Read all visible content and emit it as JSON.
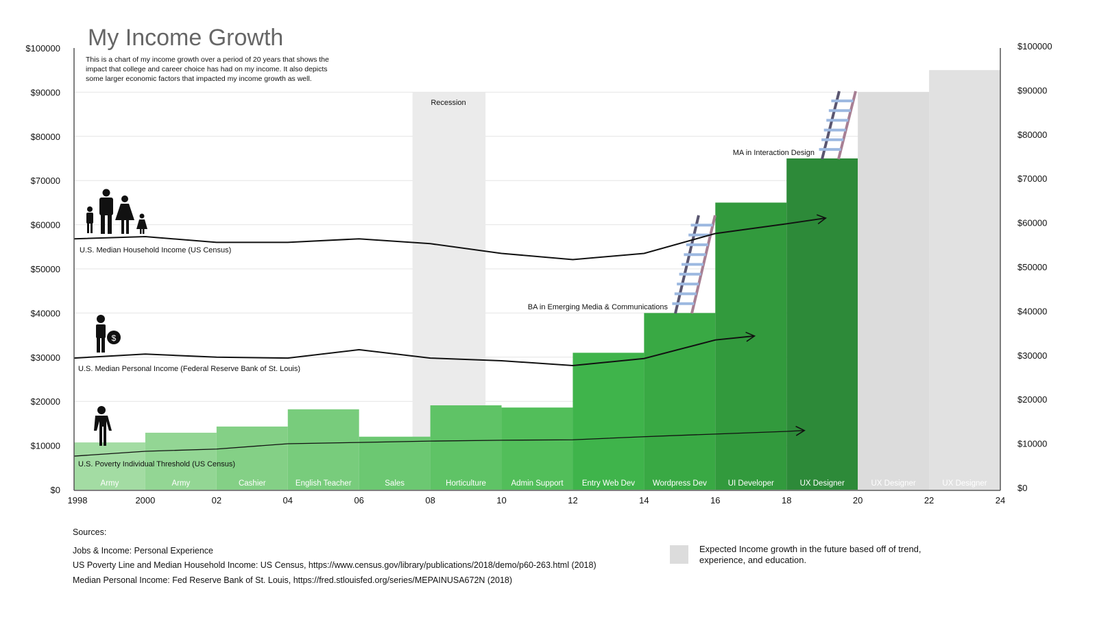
{
  "chart_data": {
    "type": "bar",
    "title": "My Income Growth",
    "subtitle": [
      "This is a chart of my income growth over a period of 20 years that shows the",
      "impact that college and career choice has had on my income. It also depicts",
      "some larger economic factors that impacted my income growth as well."
    ],
    "xlim": [
      1998,
      2024
    ],
    "ylim": [
      0,
      100000
    ],
    "grid": true,
    "x_tick_values": [
      1998,
      2000,
      2002,
      2004,
      2006,
      2008,
      2010,
      2012,
      2014,
      2016,
      2018,
      2020,
      2022,
      2024
    ],
    "x_tick_labels": [
      "1998",
      "2000",
      "02",
      "04",
      "06",
      "08",
      "10",
      "12",
      "14",
      "16",
      "18",
      "20",
      "22",
      "24"
    ],
    "y_tick_values": [
      0,
      10000,
      20000,
      30000,
      40000,
      50000,
      60000,
      70000,
      80000,
      90000,
      100000
    ],
    "y_tick_labels": [
      "$0",
      "$10000",
      "$20000",
      "$30000",
      "$40000",
      "$50000",
      "$60000",
      "$70000",
      "$80000",
      "$90000",
      "$100000"
    ],
    "bars": [
      {
        "label": "Army",
        "start": 1998,
        "end": 2000,
        "value": 10700,
        "color": "#a3dca3",
        "projected": false
      },
      {
        "label": "Army",
        "start": 2000,
        "end": 2002,
        "value": 12900,
        "color": "#93d694",
        "projected": false
      },
      {
        "label": "Cashier",
        "start": 2002,
        "end": 2004,
        "value": 14300,
        "color": "#84d086",
        "projected": false
      },
      {
        "label": "English Teacher",
        "start": 2004,
        "end": 2006,
        "value": 18200,
        "color": "#78cc7c",
        "projected": false
      },
      {
        "label": "Sales",
        "start": 2006,
        "end": 2008,
        "value": 12000,
        "color": "#6cc872",
        "projected": false
      },
      {
        "label": "Horticulture",
        "start": 2008,
        "end": 2010,
        "value": 19100,
        "color": "#5fc366",
        "projected": false
      },
      {
        "label": "Admin Support",
        "start": 2010,
        "end": 2012,
        "value": 18600,
        "color": "#52be5a",
        "projected": false
      },
      {
        "label": "Entry Web Dev",
        "start": 2012,
        "end": 2014,
        "value": 31000,
        "color": "#3fb44b",
        "projected": false
      },
      {
        "label": "Wordpress Dev",
        "start": 2014,
        "end": 2016,
        "value": 40000,
        "color": "#39a944",
        "projected": false
      },
      {
        "label": "UI Developer",
        "start": 2016,
        "end": 2018,
        "value": 65000,
        "color": "#329a3d",
        "projected": false
      },
      {
        "label": "UX Designer",
        "start": 2018,
        "end": 2020,
        "value": 75000,
        "color": "#2d8a39",
        "projected": false
      },
      {
        "label": "UX Designer",
        "start": 2020,
        "end": 2022,
        "value": 90000,
        "color": "#dcdcdc",
        "projected": true
      },
      {
        "label": "UX Designer",
        "start": 2022,
        "end": 2024,
        "value": 95000,
        "color": "#e1e1e1",
        "projected": true
      }
    ],
    "shaded_regions": [
      {
        "label": "Recession",
        "start": 2007.5,
        "end": 2009.55,
        "value": 90000,
        "color": "#ebebeb"
      }
    ],
    "series": [
      {
        "name": "U.S. Median Household Income (US Census)",
        "type": "line",
        "x": [
          1998,
          2000,
          2002,
          2004,
          2006,
          2008,
          2010,
          2012,
          2014,
          2016,
          2018,
          2019.1
        ],
        "values": [
          56800,
          57300,
          56000,
          56000,
          56800,
          55700,
          53500,
          52100,
          53500,
          58000,
          60200,
          61500
        ]
      },
      {
        "name": "U.S. Median Personal Income (Federal Reserve Bank of St. Louis)",
        "type": "line",
        "x": [
          1998,
          2000,
          2002,
          2004,
          2006,
          2008,
          2010,
          2012,
          2014,
          2016,
          2017.1
        ],
        "values": [
          29800,
          30700,
          30000,
          29800,
          31700,
          29800,
          29200,
          28100,
          29700,
          33900,
          34800
        ]
      },
      {
        "name": "U.S. Poverty Individual Threshold (US Census)",
        "type": "line",
        "x": [
          1998,
          2000,
          2002,
          2004,
          2006,
          2008,
          2010,
          2012,
          2014,
          2016,
          2018,
          2018.5
        ],
        "values": [
          7600,
          8700,
          9200,
          10400,
          10700,
          11000,
          11200,
          11300,
          12000,
          12600,
          13200,
          13400
        ]
      }
    ],
    "annotations": {
      "recession": "Recession",
      "ba": "BA in Emerging Media & Communications",
      "ma": "MA in Interaction Design"
    },
    "legend": {
      "projected": "Expected Income growth in the future based off of trend,",
      "projected_2": "experience, and education.",
      "color": "#dcdcdc"
    }
  },
  "sources": {
    "heading": "Sources:",
    "items": [
      "Jobs & Income: Personal Experience",
      "US Poverty Line and Median Household Income: US Census, https://www.census.gov/library/publications/2018/demo/p60-263.html (2018)",
      "Median Personal Income: Fed Reserve Bank of St. Louis, https://fred.stlouisfed.org/series/MEPAINUSA672N (2018)"
    ]
  }
}
